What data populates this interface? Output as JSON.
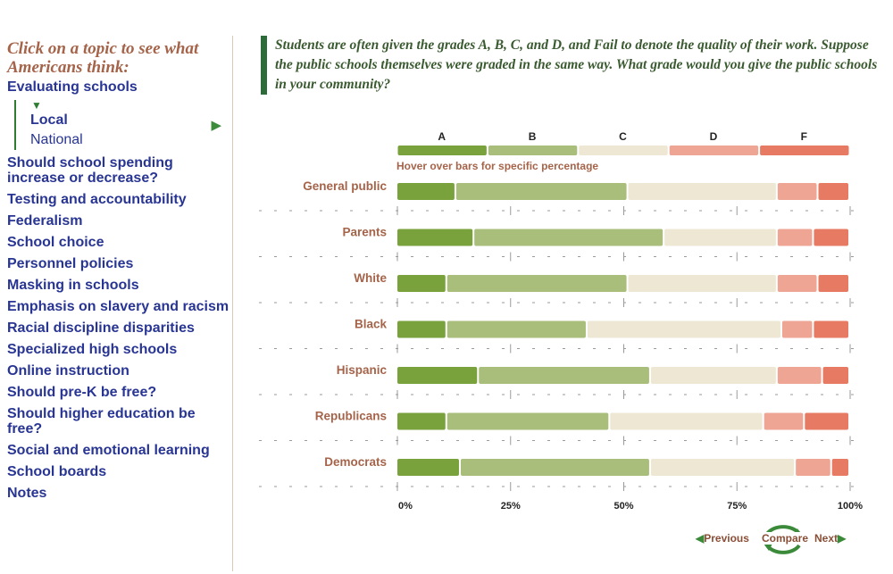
{
  "sidebar": {
    "intro": "Click on a topic to see what Americans think:",
    "topics": [
      "Evaluating schools",
      "Should school spending increase or decrease?",
      "Testing and accountability",
      "Federalism",
      "School choice",
      "Personnel policies",
      "Masking in schools",
      "Emphasis on slavery and racism",
      "Racial discipline disparities",
      "Specialized high schools",
      "Online instruction",
      "Should pre-K be free?",
      "Should higher education be free?",
      "Social and emotional learning",
      "School boards",
      "Notes"
    ],
    "subtopics": [
      "Local",
      "National"
    ],
    "active_subtopic": "Local"
  },
  "question": "Students are often given the grades A, B, C, and D, and Fail to denote the quality of their work. Suppose the public schools themselves were graded in the same way. What grade would you give the public schools in your community?",
  "hint": "Hover over bars for specific percentage",
  "nav": {
    "previous": "Previous",
    "compare": "Compare",
    "next": "Next"
  },
  "colors": {
    "A": "#7aa23c",
    "B": "#a8be7a",
    "C": "#ede7d4",
    "D": "#eea594",
    "F": "#e67a62",
    "label": "#a5644a"
  },
  "chart_data": {
    "type": "bar",
    "orientation": "horizontal",
    "stacked": true,
    "categories": [
      "General public",
      "Parents",
      "White",
      "Black",
      "Hispanic",
      "Republicans",
      "Democrats"
    ],
    "series": [
      {
        "name": "A",
        "values": [
          13,
          17,
          11,
          11,
          18,
          11,
          14
        ]
      },
      {
        "name": "B",
        "values": [
          38,
          42,
          40,
          31,
          38,
          36,
          42
        ]
      },
      {
        "name": "C",
        "values": [
          33,
          25,
          33,
          43,
          28,
          34,
          32
        ]
      },
      {
        "name": "D",
        "values": [
          9,
          8,
          9,
          7,
          10,
          9,
          8
        ]
      },
      {
        "name": "F",
        "values": [
          7,
          8,
          7,
          8,
          6,
          10,
          4
        ]
      }
    ],
    "xticks": [
      "0%",
      "25%",
      "50%",
      "75%",
      "100%"
    ],
    "xlim": [
      0,
      100
    ],
    "legend": "top"
  }
}
